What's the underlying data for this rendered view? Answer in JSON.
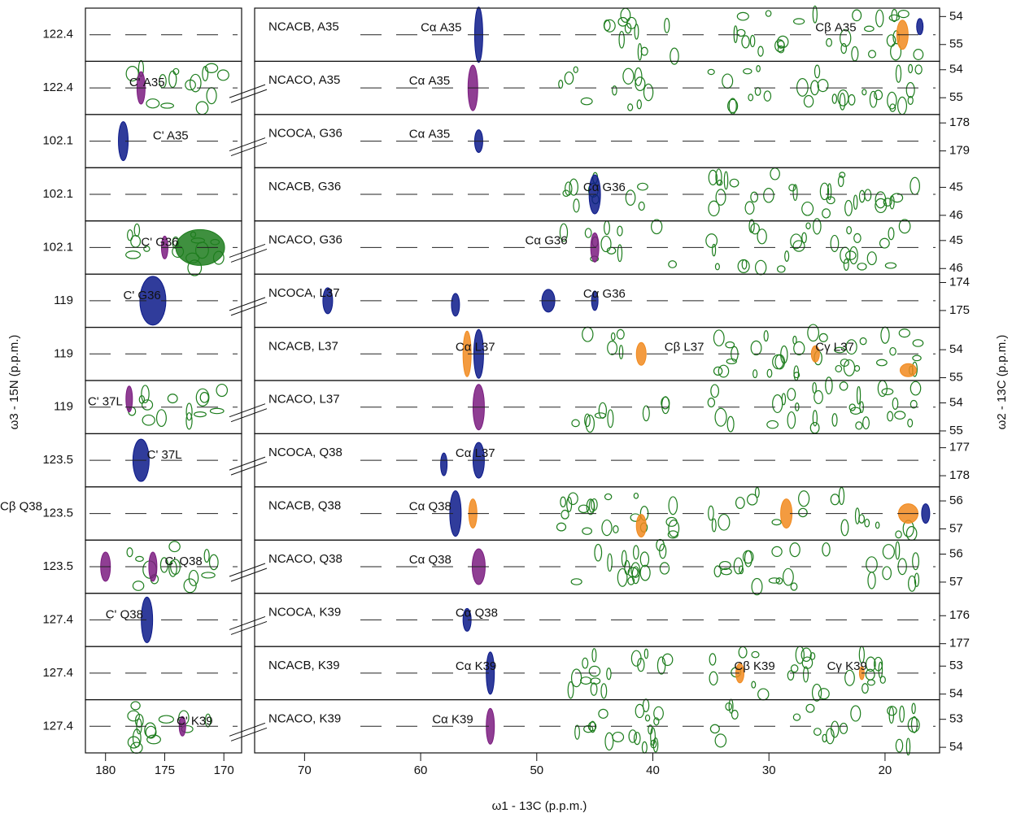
{
  "chart_data": {
    "type": "nmr-strips",
    "x_label": "ω1 - 13C (p.p.m.)",
    "y_label": "ω3 - 15N (p.p.m.)",
    "y2_label": "ω2 - 13C (p.p.m.)",
    "xlim_left": [
      181.7,
      168.5
    ],
    "xticks_left": [
      180,
      175,
      170
    ],
    "xlim": [
      74.3,
      15.3
    ],
    "xticks": [
      70,
      60,
      50,
      40,
      30,
      20
    ],
    "rows": [
      {
        "n15": 122.4,
        "experiment": "NCACB, A35",
        "y2ticks": [
          54,
          55
        ],
        "y2lim": [
          53.7,
          55.6
        ],
        "left_peaks": [],
        "right_peaks": [
          "Cα A35",
          "Cβ A35"
        ]
      },
      {
        "n15": 122.4,
        "experiment": "NCACO, A35",
        "y2ticks": [
          54,
          55
        ],
        "y2lim": [
          53.7,
          55.6
        ],
        "left_peaks": [
          "C' A35"
        ],
        "right_peaks": [
          "Cα A35"
        ]
      },
      {
        "n15": 102.1,
        "experiment": "NCOCA, G36",
        "y2ticks": [
          178,
          179
        ],
        "y2lim": [
          177.7,
          179.6
        ],
        "left_peaks": [
          "C' A35"
        ],
        "right_peaks": [
          "Cα A35"
        ]
      },
      {
        "n15": 102.1,
        "experiment": "NCACB, G36",
        "y2ticks": [
          45,
          46
        ],
        "y2lim": [
          44.3,
          46.2
        ],
        "left_peaks": [],
        "right_peaks": [
          "Cα G36"
        ]
      },
      {
        "n15": 102.1,
        "experiment": "NCACO, G36",
        "y2ticks": [
          45,
          46
        ],
        "y2lim": [
          44.3,
          46.2
        ],
        "left_peaks": [
          "C' G36"
        ],
        "right_peaks": [
          "Cα G36"
        ]
      },
      {
        "n15": 119.0,
        "experiment": "NCOCA, L37",
        "y2ticks": [
          174,
          175
        ],
        "y2lim": [
          173.7,
          175.6
        ],
        "left_peaks": [
          "C' G36"
        ],
        "right_peaks": [
          "Cα G36"
        ]
      },
      {
        "n15": 119.0,
        "experiment": "NCACB, L37",
        "y2ticks": [
          54,
          55
        ],
        "y2lim": [
          53.2,
          55.1
        ],
        "left_peaks": [],
        "right_peaks": [
          "Cα L37",
          "Cβ L37",
          "Cγ L37"
        ]
      },
      {
        "n15": 119.0,
        "experiment": "NCACO, L37",
        "y2ticks": [
          54,
          55
        ],
        "y2lim": [
          53.2,
          55.1
        ],
        "left_peaks": [
          "C' 37L"
        ],
        "right_peaks": []
      },
      {
        "n15": 123.5,
        "experiment": "NCOCA, Q38",
        "y2ticks": [
          177,
          178
        ],
        "y2lim": [
          176.5,
          178.4
        ],
        "left_peaks": [
          "C' 37L"
        ],
        "right_peaks": [
          "Cα L37"
        ]
      },
      {
        "n15": 123.5,
        "experiment": "NCACB, Q38",
        "y2ticks": [
          56,
          57
        ],
        "y2lim": [
          55.5,
          57.4
        ],
        "left_peaks": [],
        "right_peaks": [
          "Cα Q38",
          "Cβ Q38"
        ]
      },
      {
        "n15": 123.5,
        "experiment": "NCACO, Q38",
        "y2ticks": [
          56,
          57
        ],
        "y2lim": [
          55.5,
          57.4
        ],
        "left_peaks": [
          "C' Q38"
        ],
        "right_peaks": [
          "Cα Q38"
        ]
      },
      {
        "n15": 127.4,
        "experiment": "NCOCA, K39",
        "y2ticks": [
          176,
          177
        ],
        "y2lim": [
          175.2,
          177.1
        ],
        "left_peaks": [
          "C' Q38"
        ],
        "right_peaks": [
          "Cα Q38"
        ]
      },
      {
        "n15": 127.4,
        "experiment": "NCACB, K39",
        "y2ticks": [
          53,
          54
        ],
        "y2lim": [
          52.3,
          54.2
        ],
        "left_peaks": [],
        "right_peaks": [
          "Cα K39",
          "Cβ K39",
          "Cγ K39"
        ]
      },
      {
        "n15": 127.4,
        "experiment": "NCACO, K39",
        "y2ticks": [
          53,
          54
        ],
        "y2lim": [
          52.3,
          54.2
        ],
        "left_peaks": [
          "C' K39"
        ],
        "right_peaks": [
          "Cα K39"
        ]
      }
    ]
  }
}
